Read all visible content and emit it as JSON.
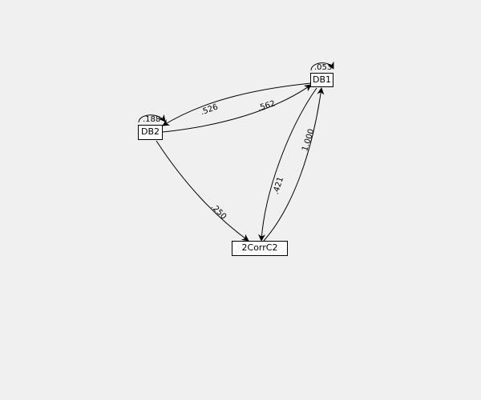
{
  "diagram": {
    "nodes": [
      {
        "id": "db1",
        "label": "DB1",
        "self_loop": ".053"
      },
      {
        "id": "db2",
        "label": "DB2",
        "self_loop": ".188"
      },
      {
        "id": "corr",
        "label": "2CorrC2"
      }
    ],
    "edges": [
      {
        "from": "db1",
        "to": "db2",
        "weight": ".526"
      },
      {
        "from": "db2",
        "to": "db1",
        "weight": ".562"
      },
      {
        "from": "db2",
        "to": "corr",
        "weight": ".250"
      },
      {
        "from": "db1",
        "to": "corr",
        "weight": ".421"
      },
      {
        "from": "corr",
        "to": "db1",
        "weight": "1.000"
      }
    ]
  }
}
